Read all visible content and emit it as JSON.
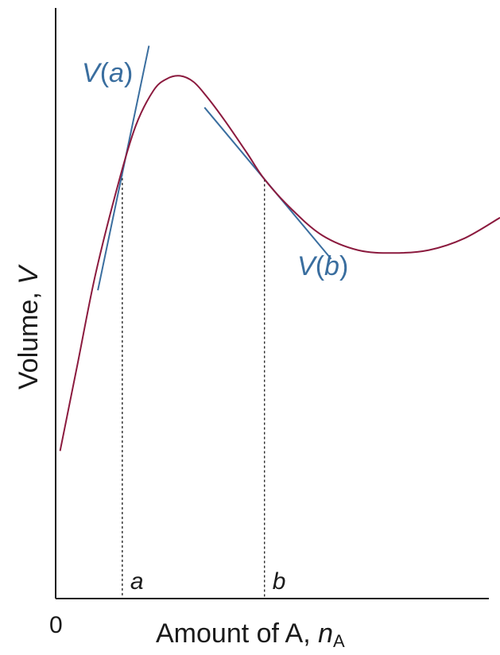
{
  "chart_data": {
    "type": "line",
    "title": "",
    "xlabel": {
      "text": "Amount of A, ",
      "var": "n",
      "sub": "A"
    },
    "ylabel": {
      "text": "Volume, ",
      "var": "V"
    },
    "x_origin_label": "0",
    "xlim": [
      0,
      10
    ],
    "ylim": [
      0,
      10
    ],
    "series": [
      {
        "x": [
          0.1,
          0.5,
          0.9,
          1.4,
          1.8,
          2.2,
          2.5,
          2.8,
          3.1,
          3.4,
          3.8,
          4.3,
          4.7,
          5.3,
          6.0,
          6.8,
          7.6,
          8.4,
          9.2,
          10.0
        ],
        "y": [
          2.5,
          4.0,
          5.5,
          7.0,
          8.0,
          8.6,
          8.8,
          8.85,
          8.75,
          8.5,
          8.1,
          7.55,
          7.1,
          6.6,
          6.15,
          5.9,
          5.85,
          5.9,
          6.1,
          6.45
        ]
      }
    ],
    "tangents": [
      {
        "label_main": "V",
        "label_arg": "a",
        "label_open": "(",
        "label_close": ")",
        "x": 1.5,
        "y": 7.2,
        "slope": 3.6,
        "x_range": [
          0.95,
          2.1
        ]
      },
      {
        "label_main": "V",
        "label_arg": "b",
        "label_open": "(",
        "label_close": ")",
        "x": 4.7,
        "y": 7.1,
        "slope": -0.9,
        "x_range": [
          3.35,
          6.2
        ]
      }
    ],
    "marked_points": [
      {
        "label": "a",
        "x": 1.5
      },
      {
        "label": "b",
        "x": 4.7
      }
    ],
    "colors": {
      "curve": "#8b1a3e",
      "tangent": "#3a6e9f",
      "axis": "#1a1a1a"
    }
  }
}
